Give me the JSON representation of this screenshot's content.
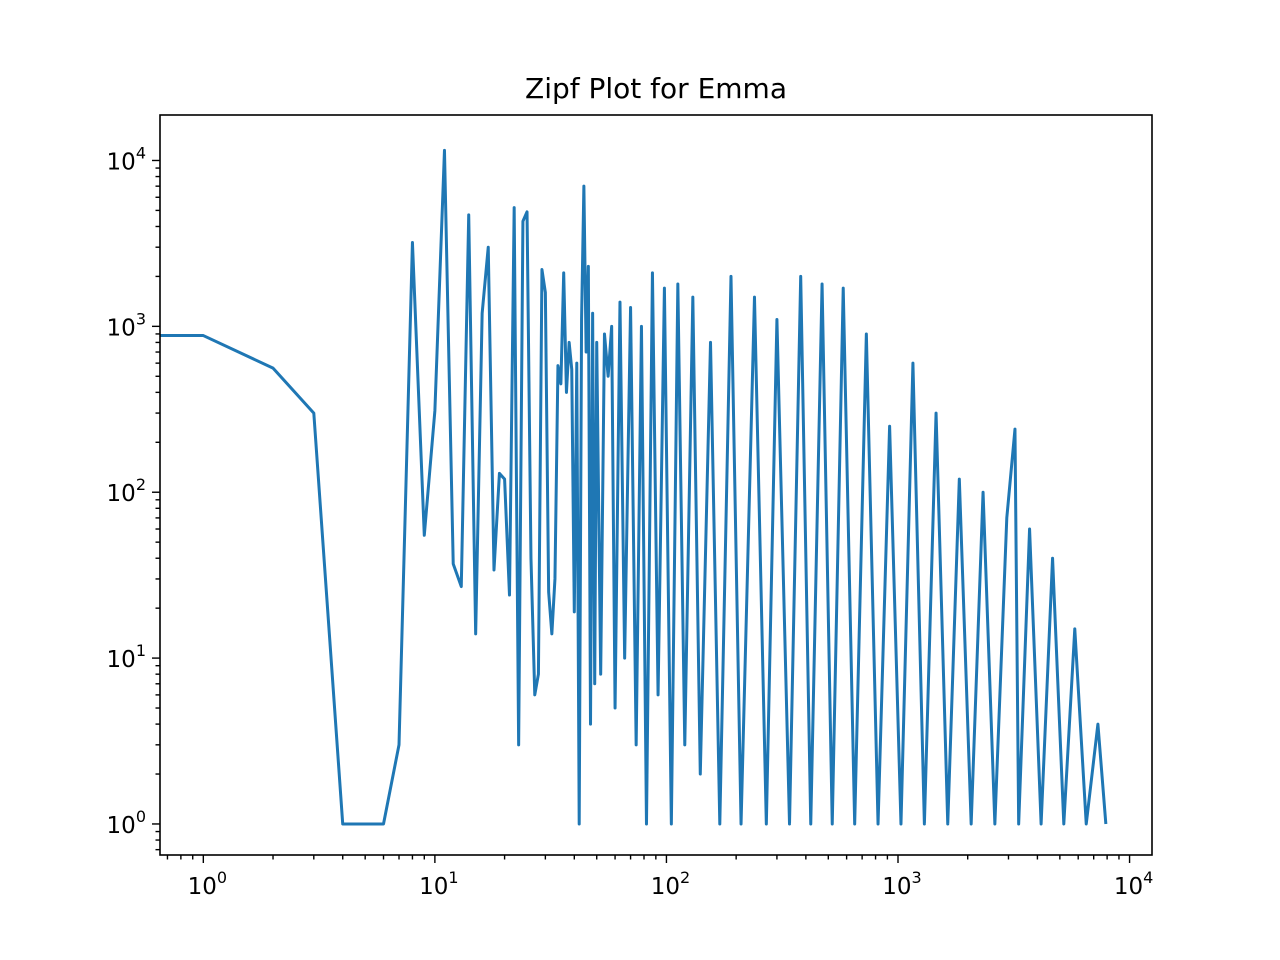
{
  "chart_data": {
    "type": "line",
    "title": "Zipf Plot for Emma",
    "xlabel": "",
    "ylabel": "",
    "xscale": "log",
    "yscale": "log",
    "xlim": [
      0.65,
      12500
    ],
    "ylim": [
      0.65,
      18800
    ],
    "grid": false,
    "x_tick_labels": [
      {
        "base": "10",
        "exp": "0",
        "value": 1
      },
      {
        "base": "10",
        "exp": "1",
        "value": 10
      },
      {
        "base": "10",
        "exp": "2",
        "value": 100
      },
      {
        "base": "10",
        "exp": "3",
        "value": 1000
      },
      {
        "base": "10",
        "exp": "4",
        "value": 10000
      }
    ],
    "y_tick_labels": [
      {
        "base": "10",
        "exp": "0",
        "value": 1
      },
      {
        "base": "10",
        "exp": "1",
        "value": 10
      },
      {
        "base": "10",
        "exp": "2",
        "value": 100
      },
      {
        "base": "10",
        "exp": "3",
        "value": 1000
      },
      {
        "base": "10",
        "exp": "4",
        "value": 10000
      }
    ],
    "series": [
      {
        "color": "#1f77b4",
        "x": [
          0.6,
          1,
          2,
          3,
          4,
          5,
          6,
          7,
          8,
          9,
          10,
          11,
          12,
          13,
          14,
          15,
          16,
          17,
          18,
          19,
          20,
          21,
          22,
          23,
          24,
          25,
          26,
          27,
          28,
          29,
          30,
          31,
          32,
          33,
          34,
          35,
          36,
          37,
          38,
          39,
          40,
          41,
          42,
          43,
          44,
          45,
          46,
          47,
          48,
          49,
          50,
          52,
          54,
          56,
          58,
          60,
          63,
          66,
          70,
          74,
          78,
          82,
          87,
          92,
          98,
          105,
          112,
          120,
          130,
          140,
          155,
          170,
          190,
          210,
          240,
          270,
          300,
          340,
          380,
          420,
          470,
          520,
          580,
          650,
          730,
          820,
          920,
          1030,
          1160,
          1300,
          1460,
          1640,
          1840,
          2070,
          2330,
          2620,
          2950,
          3200,
          3320,
          3700,
          4150,
          4650,
          5200,
          5800,
          6500,
          7300,
          7900
        ],
        "y": [
          880,
          880,
          560,
          300,
          1,
          1,
          1,
          3,
          3200,
          55,
          310,
          11500,
          37,
          27,
          4700,
          14,
          1200,
          3000,
          34,
          130,
          120,
          24,
          5200,
          3,
          4300,
          4900,
          40,
          6,
          8,
          2200,
          1600,
          25,
          14,
          30,
          580,
          450,
          2100,
          400,
          800,
          550,
          19,
          600,
          1,
          1100,
          7000,
          700,
          2300,
          4,
          1200,
          7,
          800,
          8,
          900,
          500,
          1000,
          5,
          1400,
          10,
          1300,
          3,
          1000,
          1,
          2100,
          6,
          1700,
          1,
          1800,
          3,
          1500,
          2,
          800,
          1,
          2000,
          1,
          1500,
          1,
          1100,
          1,
          2000,
          1,
          1800,
          1,
          1700,
          1,
          900,
          1,
          250,
          1,
          600,
          1,
          300,
          1,
          120,
          1,
          100,
          1,
          70,
          240,
          1,
          60,
          1,
          40,
          1,
          15,
          1,
          4,
          1
        ]
      }
    ]
  }
}
